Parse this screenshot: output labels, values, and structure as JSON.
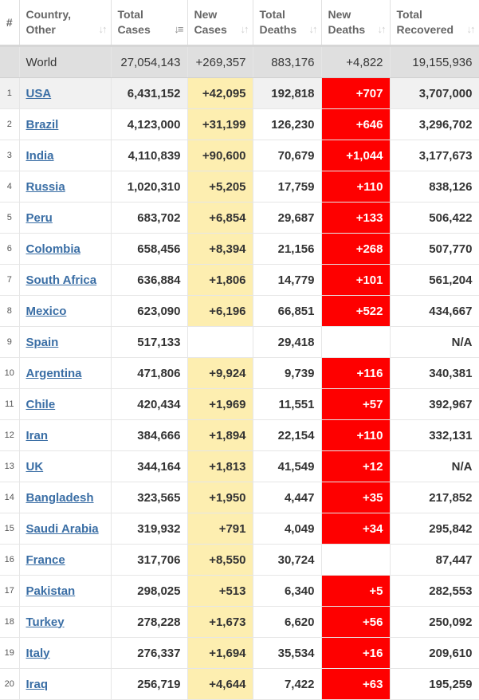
{
  "headers": {
    "rank": "#",
    "country_line1": "Country,",
    "country_line2": "Other",
    "total_cases_line1": "Total",
    "total_cases_line2": "Cases",
    "new_cases_line1": "New",
    "new_cases_line2": "Cases",
    "total_deaths_line1": "Total",
    "total_deaths_line2": "Deaths",
    "new_deaths_line1": "New",
    "new_deaths_line2": "Deaths",
    "total_recovered_line1": "Total",
    "total_recovered_line2": "Recovered",
    "sort_icon": "sort-arrows-icon",
    "sort_active_icon": "sort-descending-icon"
  },
  "colors": {
    "new_cases_bg": "#fdeeb0",
    "new_deaths_bg": "#fe0000",
    "link": "#3a6ea5",
    "world_bg": "#dfdfdf"
  },
  "world": {
    "country": "World",
    "total_cases": "27,054,143",
    "new_cases": "+269,357",
    "total_deaths": "883,176",
    "new_deaths": "+4,822",
    "total_recovered": "19,155,936"
  },
  "rows": [
    {
      "rank": "1",
      "country": "USA",
      "total_cases": "6,431,152",
      "new_cases": "+42,095",
      "total_deaths": "192,818",
      "new_deaths": "+707",
      "total_recovered": "3,707,000"
    },
    {
      "rank": "2",
      "country": "Brazil",
      "total_cases": "4,123,000",
      "new_cases": "+31,199",
      "total_deaths": "126,230",
      "new_deaths": "+646",
      "total_recovered": "3,296,702"
    },
    {
      "rank": "3",
      "country": "India",
      "total_cases": "4,110,839",
      "new_cases": "+90,600",
      "total_deaths": "70,679",
      "new_deaths": "+1,044",
      "total_recovered": "3,177,673"
    },
    {
      "rank": "4",
      "country": "Russia",
      "total_cases": "1,020,310",
      "new_cases": "+5,205",
      "total_deaths": "17,759",
      "new_deaths": "+110",
      "total_recovered": "838,126"
    },
    {
      "rank": "5",
      "country": "Peru",
      "total_cases": "683,702",
      "new_cases": "+6,854",
      "total_deaths": "29,687",
      "new_deaths": "+133",
      "total_recovered": "506,422"
    },
    {
      "rank": "6",
      "country": "Colombia",
      "total_cases": "658,456",
      "new_cases": "+8,394",
      "total_deaths": "21,156",
      "new_deaths": "+268",
      "total_recovered": "507,770"
    },
    {
      "rank": "7",
      "country": "South Africa",
      "total_cases": "636,884",
      "new_cases": "+1,806",
      "total_deaths": "14,779",
      "new_deaths": "+101",
      "total_recovered": "561,204"
    },
    {
      "rank": "8",
      "country": "Mexico",
      "total_cases": "623,090",
      "new_cases": "+6,196",
      "total_deaths": "66,851",
      "new_deaths": "+522",
      "total_recovered": "434,667"
    },
    {
      "rank": "9",
      "country": "Spain",
      "total_cases": "517,133",
      "new_cases": "",
      "total_deaths": "29,418",
      "new_deaths": "",
      "total_recovered": "N/A"
    },
    {
      "rank": "10",
      "country": "Argentina",
      "total_cases": "471,806",
      "new_cases": "+9,924",
      "total_deaths": "9,739",
      "new_deaths": "+116",
      "total_recovered": "340,381"
    },
    {
      "rank": "11",
      "country": "Chile",
      "total_cases": "420,434",
      "new_cases": "+1,969",
      "total_deaths": "11,551",
      "new_deaths": "+57",
      "total_recovered": "392,967"
    },
    {
      "rank": "12",
      "country": "Iran",
      "total_cases": "384,666",
      "new_cases": "+1,894",
      "total_deaths": "22,154",
      "new_deaths": "+110",
      "total_recovered": "332,131"
    },
    {
      "rank": "13",
      "country": "UK",
      "total_cases": "344,164",
      "new_cases": "+1,813",
      "total_deaths": "41,549",
      "new_deaths": "+12",
      "total_recovered": "N/A"
    },
    {
      "rank": "14",
      "country": "Bangladesh",
      "total_cases": "323,565",
      "new_cases": "+1,950",
      "total_deaths": "4,447",
      "new_deaths": "+35",
      "total_recovered": "217,852"
    },
    {
      "rank": "15",
      "country": "Saudi Arabia",
      "total_cases": "319,932",
      "new_cases": "+791",
      "total_deaths": "4,049",
      "new_deaths": "+34",
      "total_recovered": "295,842"
    },
    {
      "rank": "16",
      "country": "France",
      "total_cases": "317,706",
      "new_cases": "+8,550",
      "total_deaths": "30,724",
      "new_deaths": "",
      "total_recovered": "87,447"
    },
    {
      "rank": "17",
      "country": "Pakistan",
      "total_cases": "298,025",
      "new_cases": "+513",
      "total_deaths": "6,340",
      "new_deaths": "+5",
      "total_recovered": "282,553"
    },
    {
      "rank": "18",
      "country": "Turkey",
      "total_cases": "278,228",
      "new_cases": "+1,673",
      "total_deaths": "6,620",
      "new_deaths": "+56",
      "total_recovered": "250,092"
    },
    {
      "rank": "19",
      "country": "Italy",
      "total_cases": "276,337",
      "new_cases": "+1,694",
      "total_deaths": "35,534",
      "new_deaths": "+16",
      "total_recovered": "209,610"
    },
    {
      "rank": "20",
      "country": "Iraq",
      "total_cases": "256,719",
      "new_cases": "+4,644",
      "total_deaths": "7,422",
      "new_deaths": "+63",
      "total_recovered": "195,259"
    }
  ]
}
